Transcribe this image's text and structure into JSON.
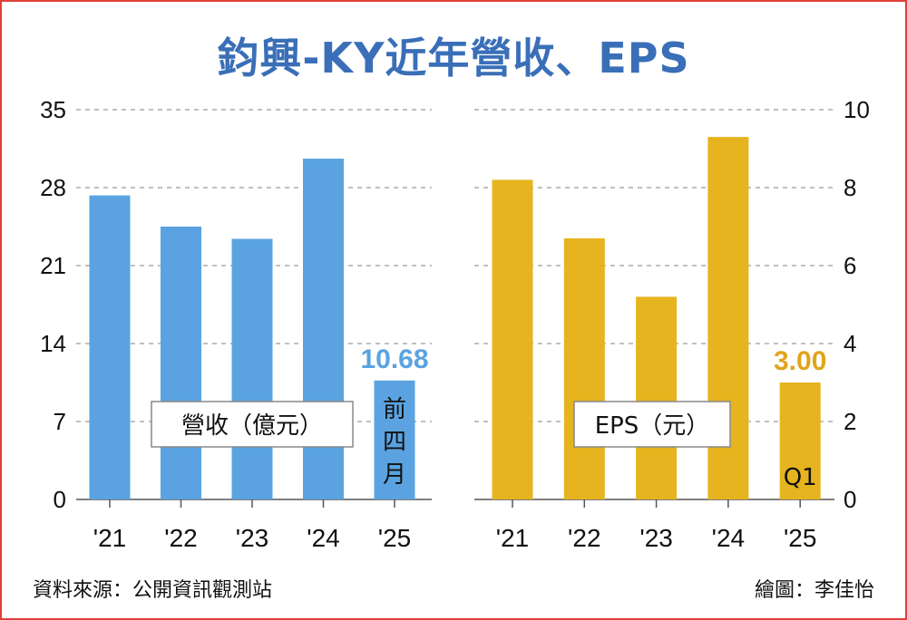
{
  "title": "鈞興-KY近年營收、EPS",
  "source": "資料來源：公開資訊觀測站",
  "credit": "繪圖：李佳怡",
  "colors": {
    "revenue": "#5aa3e0",
    "eps": "#e6b41f",
    "border": "#e0403a",
    "title": "#3a6fb8"
  },
  "chart_data": [
    {
      "type": "bar",
      "name": "revenue",
      "legend": "營收（億元）",
      "categories": [
        "'21",
        "'22",
        "'23",
        "'24",
        "'25"
      ],
      "values": [
        27.3,
        24.5,
        23.4,
        30.6,
        10.68
      ],
      "ylim": [
        0,
        35
      ],
      "yticks": [
        "0",
        "7",
        "14",
        "21",
        "28",
        "35"
      ],
      "tick_values": [
        0,
        7,
        14,
        21,
        28,
        35
      ],
      "value_label": "10.68",
      "bar_note": [
        "前",
        "四",
        "月"
      ],
      "grid": true
    },
    {
      "type": "bar",
      "name": "eps",
      "legend": "EPS（元）",
      "categories": [
        "'21",
        "'22",
        "'23",
        "'24",
        "'25"
      ],
      "values": [
        8.2,
        6.7,
        5.2,
        9.3,
        3.0
      ],
      "ylim": [
        0,
        10
      ],
      "yticks": [
        "0",
        "2",
        "4",
        "6",
        "8",
        "10"
      ],
      "tick_values": [
        0,
        2,
        4,
        6,
        8,
        10
      ],
      "value_label": "3.00",
      "bar_note": [
        "Q1"
      ],
      "grid": true
    }
  ]
}
